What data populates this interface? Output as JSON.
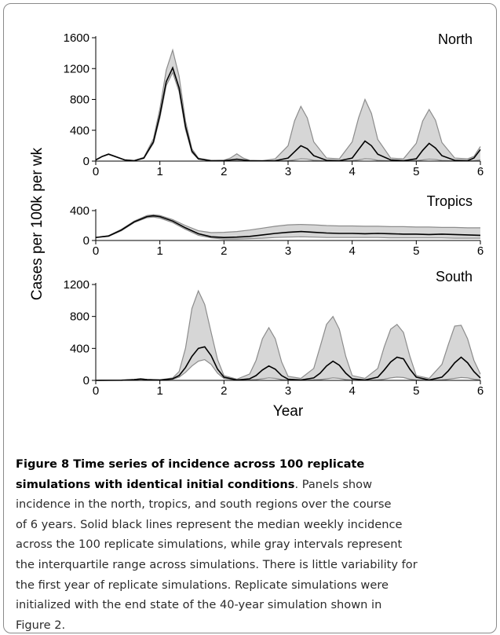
{
  "colors": {
    "median": "#000000",
    "iqr_fill": "#d6d6d6",
    "iqr_edge": "#8c8c8c",
    "axis": "#000000"
  },
  "chart_data": {
    "type": "area",
    "ylabel": "Cases per 100k per wk",
    "xlabel": "Year",
    "panels": [
      {
        "title": "North",
        "xlim": [
          0,
          6
        ],
        "ylim": [
          0,
          1600
        ],
        "xticks": [
          "0",
          "1",
          "2",
          "3",
          "4",
          "5",
          "6"
        ],
        "yticks": [
          "0",
          "400",
          "800",
          "1200",
          "1600"
        ],
        "series": [
          {
            "x": [
              0,
              0.1,
              0.2,
              0.3,
              0.45,
              0.6,
              0.75,
              0.9,
              1.0,
              1.1,
              1.2,
              1.3,
              1.4,
              1.5,
              1.6,
              1.8,
              2.0,
              2.1,
              2.2,
              2.3,
              2.4,
              2.6,
              2.8,
              3.0,
              3.1,
              3.2,
              3.3,
              3.4,
              3.6,
              3.8,
              4.0,
              4.1,
              4.2,
              4.3,
              4.4,
              4.6,
              4.8,
              5.0,
              5.1,
              5.2,
              5.3,
              5.4,
              5.6,
              5.8,
              5.9,
              6.0
            ],
            "median": [
              15,
              60,
              90,
              60,
              15,
              5,
              40,
              250,
              600,
              1030,
              1210,
              950,
              450,
              130,
              30,
              5,
              5,
              15,
              25,
              15,
              5,
              3,
              5,
              40,
              120,
              200,
              160,
              70,
              10,
              5,
              40,
              150,
              260,
              200,
              90,
              15,
              5,
              30,
              140,
              230,
              170,
              70,
              10,
              5,
              40,
              150
            ],
            "q1": [
              15,
              60,
              90,
              60,
              15,
              5,
              35,
              230,
              560,
              980,
              1150,
              900,
              410,
              110,
              25,
              3,
              2,
              5,
              8,
              5,
              2,
              1,
              2,
              5,
              15,
              30,
              25,
              10,
              2,
              2,
              5,
              15,
              30,
              25,
              10,
              2,
              2,
              5,
              15,
              25,
              20,
              8,
              2,
              2,
              5,
              15
            ],
            "q3": [
              15,
              62,
              95,
              65,
              18,
              8,
              50,
              290,
              680,
              1180,
              1440,
              1100,
              520,
              160,
              40,
              8,
              12,
              40,
              95,
              40,
              10,
              5,
              30,
              200,
              520,
              710,
              560,
              250,
              40,
              30,
              250,
              560,
              800,
              620,
              280,
              40,
              30,
              230,
              520,
              670,
              530,
              240,
              40,
              30,
              60,
              190
            ]
          }
        ]
      },
      {
        "title": "Tropics",
        "xlim": [
          0,
          6
        ],
        "ylim": [
          0,
          400
        ],
        "xticks": [
          "0",
          "1",
          "2",
          "3",
          "4",
          "5",
          "6"
        ],
        "yticks": [
          "0",
          "400"
        ],
        "series": [
          {
            "x": [
              0,
              0.2,
              0.4,
              0.6,
              0.8,
              0.9,
              1.0,
              1.2,
              1.4,
              1.6,
              1.8,
              2.0,
              2.2,
              2.4,
              2.6,
              2.8,
              3.0,
              3.2,
              3.4,
              3.6,
              3.8,
              4.0,
              4.2,
              4.4,
              4.6,
              4.8,
              5.0,
              5.2,
              5.4,
              5.6,
              5.8,
              6.0
            ],
            "median": [
              40,
              60,
              140,
              250,
              320,
              330,
              320,
              260,
              170,
              90,
              50,
              40,
              45,
              55,
              75,
              95,
              110,
              120,
              110,
              100,
              95,
              95,
              90,
              95,
              90,
              85,
              85,
              80,
              85,
              80,
              75,
              70
            ],
            "q1": [
              40,
              55,
              130,
              240,
              305,
              315,
              300,
              240,
              150,
              70,
              35,
              20,
              20,
              25,
              30,
              40,
              45,
              50,
              45,
              40,
              40,
              40,
              40,
              40,
              35,
              35,
              35,
              35,
              35,
              30,
              30,
              30
            ],
            "q3": [
              40,
              65,
              150,
              260,
              335,
              345,
              335,
              280,
              200,
              130,
              105,
              110,
              120,
              140,
              165,
              190,
              210,
              215,
              210,
              200,
              195,
              195,
              190,
              190,
              185,
              185,
              180,
              180,
              175,
              175,
              170,
              170
            ]
          }
        ]
      },
      {
        "title": "South",
        "xlim": [
          0,
          6
        ],
        "ylim": [
          0,
          1200
        ],
        "xticks": [
          "0",
          "1",
          "2",
          "3",
          "4",
          "5",
          "6"
        ],
        "yticks": [
          "0",
          "400",
          "800",
          "1200"
        ],
        "series": [
          {
            "x": [
              0,
              0.4,
              0.6,
              0.7,
              0.8,
              1.0,
              1.2,
              1.3,
              1.4,
              1.5,
              1.6,
              1.7,
              1.8,
              1.9,
              2.0,
              2.2,
              2.4,
              2.5,
              2.6,
              2.7,
              2.8,
              2.9,
              3.0,
              3.2,
              3.4,
              3.5,
              3.6,
              3.7,
              3.8,
              3.9,
              4.0,
              4.2,
              4.4,
              4.5,
              4.6,
              4.7,
              4.8,
              4.9,
              5.0,
              5.2,
              5.4,
              5.5,
              5.6,
              5.7,
              5.8,
              5.9,
              6.0
            ],
            "median": [
              0,
              2,
              10,
              18,
              10,
              5,
              20,
              60,
              160,
              300,
              400,
              420,
              310,
              140,
              40,
              5,
              20,
              60,
              130,
              180,
              140,
              60,
              15,
              5,
              30,
              90,
              180,
              240,
              190,
              90,
              20,
              5,
              40,
              130,
              230,
              290,
              270,
              140,
              40,
              5,
              40,
              120,
              220,
              290,
              220,
              110,
              30
            ],
            "q1": [
              0,
              2,
              8,
              15,
              8,
              4,
              15,
              40,
              100,
              180,
              240,
              260,
              200,
              90,
              25,
              2,
              5,
              10,
              20,
              30,
              25,
              10,
              3,
              1,
              5,
              10,
              20,
              30,
              25,
              10,
              3,
              1,
              5,
              15,
              30,
              40,
              35,
              15,
              5,
              1,
              5,
              15,
              25,
              35,
              30,
              15,
              5
            ],
            "q3": [
              0,
              2,
              12,
              20,
              12,
              6,
              30,
              110,
              400,
              900,
              1120,
              950,
              600,
              260,
              60,
              15,
              80,
              250,
              520,
              660,
              520,
              230,
              50,
              25,
              150,
              420,
              700,
              800,
              640,
              300,
              60,
              25,
              150,
              420,
              640,
              700,
              600,
              300,
              60,
              25,
              200,
              450,
              680,
              690,
              520,
              250,
              80
            ]
          }
        ]
      }
    ]
  },
  "caption": {
    "label": "Figure 8",
    "title": "Time series of incidence across 100 replicate simulations with identical initial conditions",
    "lines": [
      "simulations with identical initial conditions",
      ". Panels show",
      "incidence in the north, tropics, and south regions over the course",
      "of 6 years. Solid black lines represent the median weekly incidence",
      "across the 100 replicate simulations, while gray intervals represent",
      "the interquartile range across simulations. There is little variability for",
      "the first year of replicate simulations. Replicate simulations were",
      "initialized with the end state of the 40-year simulation shown in",
      "Figure 2."
    ],
    "first_line_bold": "Figure 8 Time series of incidence across 100 replicate"
  }
}
